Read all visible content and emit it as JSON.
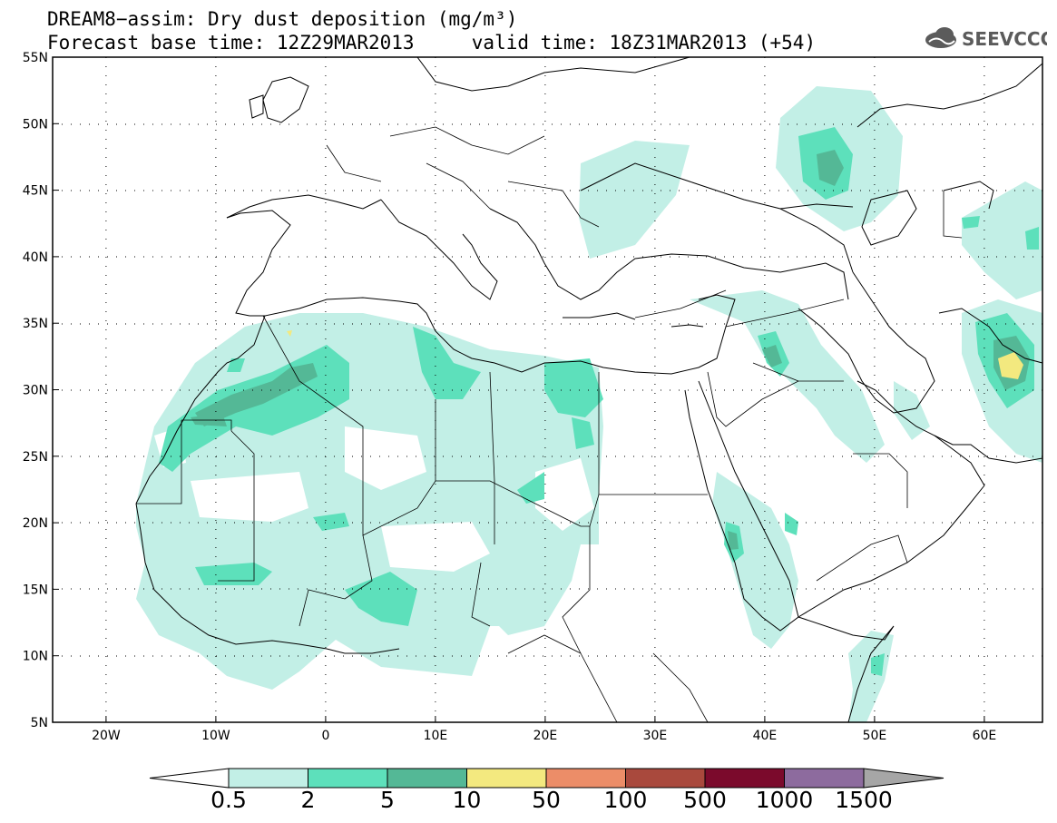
{
  "title_line1": "DREAM8−assim: Dry dust deposition (mg/m³)",
  "title_line2": "Forecast base time: 12Z29MAR2013     valid time: 18Z31MAR2013 (+54)",
  "logo_text": "SEEVCCC",
  "lat_ticks": [
    "55N",
    "50N",
    "45N",
    "40N",
    "35N",
    "30N",
    "25N",
    "20N",
    "15N",
    "10N",
    "5N"
  ],
  "lon_ticks": [
    "20W",
    "10W",
    "0",
    "10E",
    "20E",
    "30E",
    "40E",
    "50E",
    "60E"
  ],
  "colorbar": {
    "labels": [
      "0.5",
      "2",
      "5",
      "10",
      "50",
      "100",
      "500",
      "1000",
      "1500"
    ],
    "colors": [
      "#c2efe6",
      "#5de0bb",
      "#54b896",
      "#f3e97f",
      "#ec8d68",
      "#a9493d",
      "#7b0a2c",
      "#8d6b9e"
    ],
    "under_color": "#ffffff",
    "over_color": "#a6a6a6"
  },
  "map_colors": {
    "level1": "#c2efe6",
    "level2": "#5de0bb",
    "level3": "#54b896",
    "level4": "#f3e97f"
  }
}
